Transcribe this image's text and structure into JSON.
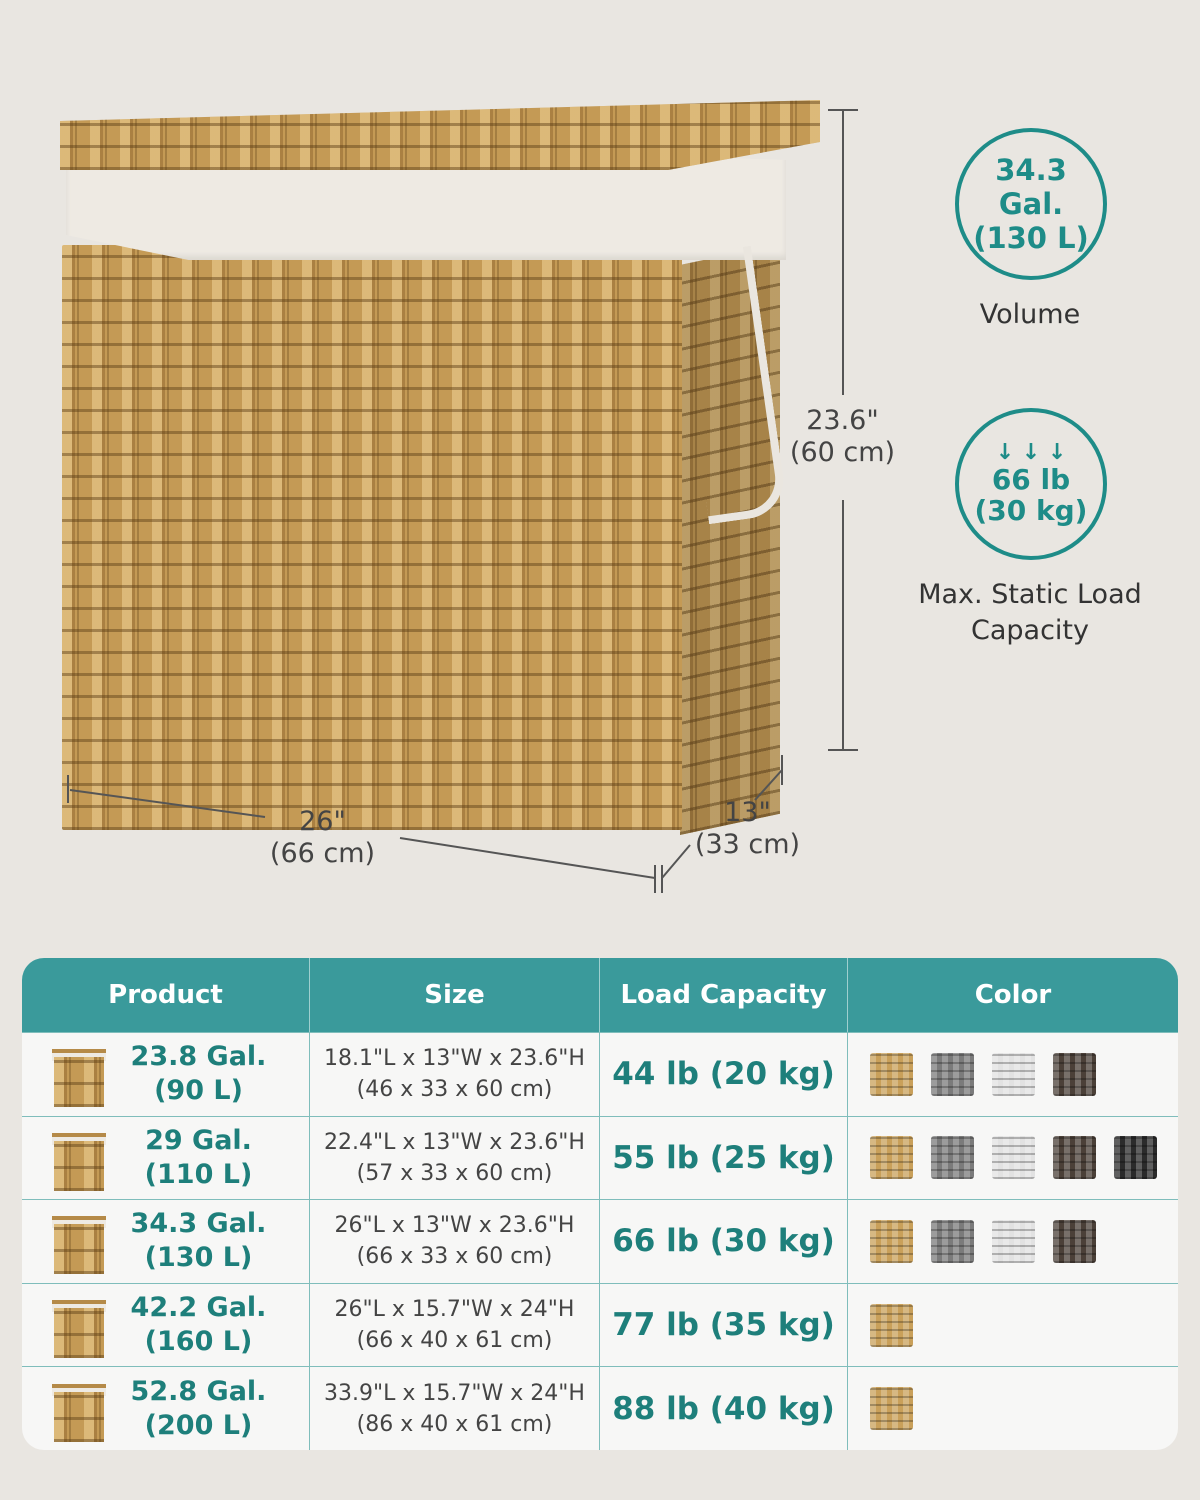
{
  "dimensions": {
    "height": "23.6\"",
    "height_cm": "(60 cm)",
    "length": "26\"",
    "length_cm": "(66 cm)",
    "width": "13\"",
    "width_cm": "(33 cm)"
  },
  "badges": [
    {
      "line1": "34.3 Gal.",
      "line2": "(130 L)",
      "caption": "Volume",
      "icon": "none"
    },
    {
      "icon": "down-arrows-icon",
      "arrows": "↓ ↓ ↓",
      "line1": "66 lb",
      "line2": "(30 kg)",
      "caption1": "Max. Static Load",
      "caption2": "Capacity"
    }
  ],
  "colors": {
    "teal": "#3a9a9b",
    "teal_text": "#1e7f7b",
    "natural": "#c9a05a",
    "grey": "#7b7b7b",
    "white": "#e2e2e2",
    "brown": "#4b4038",
    "black": "#2b2b2b"
  },
  "table": {
    "headers": [
      "Product",
      "Size",
      "Load Capacity",
      "Color"
    ],
    "rows": [
      {
        "vol1": "23.8 Gal.",
        "vol2": "(90 L)",
        "size1": "18.1\"L x 13\"W x 23.6\"H",
        "size2": "(46 x 33 x 60 cm)",
        "load": "44 lb (20 kg)",
        "swatches": [
          "natural",
          "grey",
          "white",
          "brown"
        ]
      },
      {
        "vol1": "29 Gal.",
        "vol2": "(110 L)",
        "size1": "22.4\"L x 13\"W x 23.6\"H",
        "size2": "(57 x 33 x 60 cm)",
        "load": "55 lb (25 kg)",
        "swatches": [
          "natural",
          "grey",
          "white",
          "brown",
          "black"
        ]
      },
      {
        "vol1": "34.3 Gal.",
        "vol2": "(130 L)",
        "size1": "26\"L x 13\"W x 23.6\"H",
        "size2": "(66 x 33 x 60 cm)",
        "load": "66 lb (30 kg)",
        "swatches": [
          "natural",
          "grey",
          "white",
          "brown"
        ]
      },
      {
        "vol1": "42.2 Gal.",
        "vol2": "(160 L)",
        "size1": "26\"L x 15.7\"W x 24\"H",
        "size2": "(66 x 40 x 61 cm)",
        "load": "77 lb (35 kg)",
        "swatches": [
          "natural"
        ]
      },
      {
        "vol1": "52.8 Gal.",
        "vol2": "(200 L)",
        "size1": "33.9\"L x 15.7\"W x 24\"H",
        "size2": "(86 x 40 x 61 cm)",
        "load": "88 lb (40 kg)",
        "swatches": [
          "natural"
        ]
      }
    ]
  }
}
